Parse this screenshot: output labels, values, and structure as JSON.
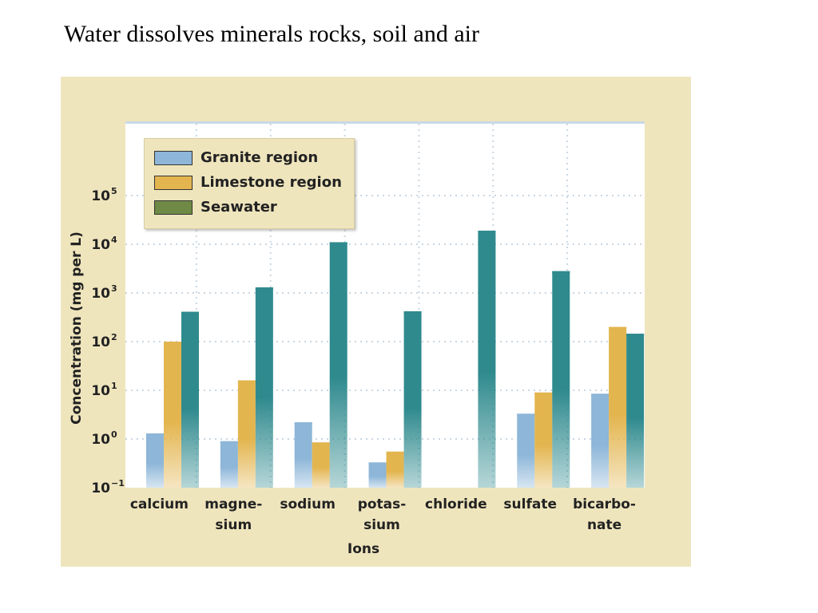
{
  "slide": {
    "title": "Water dissolves minerals rocks, soil and air"
  },
  "chart_data": {
    "type": "bar",
    "log_scale": true,
    "categories": [
      [
        "calcium",
        ""
      ],
      [
        "magne-",
        "sium"
      ],
      [
        "sodium",
        ""
      ],
      [
        "potas-",
        "sium"
      ],
      [
        "chloride",
        ""
      ],
      [
        "sulfate",
        ""
      ],
      [
        "bicarbo-",
        "nate"
      ]
    ],
    "series": [
      {
        "name": "Granite region",
        "color": "#8db6d8",
        "values": [
          1.3,
          0.9,
          2.2,
          0.33,
          null,
          3.3,
          8.5
        ]
      },
      {
        "name": "Limestone region",
        "color": "#e3b54f",
        "values": [
          100,
          16,
          0.85,
          0.55,
          null,
          9,
          200
        ]
      },
      {
        "name": "Seawater",
        "color": "#2f8a8e",
        "values": [
          410,
          1300,
          11000,
          420,
          19000,
          2800,
          145
        ]
      }
    ],
    "xlabel": "Ions",
    "ylabel": "Concentration (mg per L)",
    "yticks": [
      {
        "base": "10",
        "exp": "−1",
        "value": -1
      },
      {
        "base": "10",
        "exp": "0",
        "value": 0
      },
      {
        "base": "10",
        "exp": "1",
        "value": 1
      },
      {
        "base": "10",
        "exp": "2",
        "value": 2
      },
      {
        "base": "10",
        "exp": "3",
        "value": 3
      },
      {
        "base": "10",
        "exp": "4",
        "value": 4
      },
      {
        "base": "10",
        "exp": "5",
        "value": 5
      }
    ],
    "ylim_log10": [
      -1,
      6.3
    ],
    "grid": true,
    "legend_position": "top-left"
  }
}
